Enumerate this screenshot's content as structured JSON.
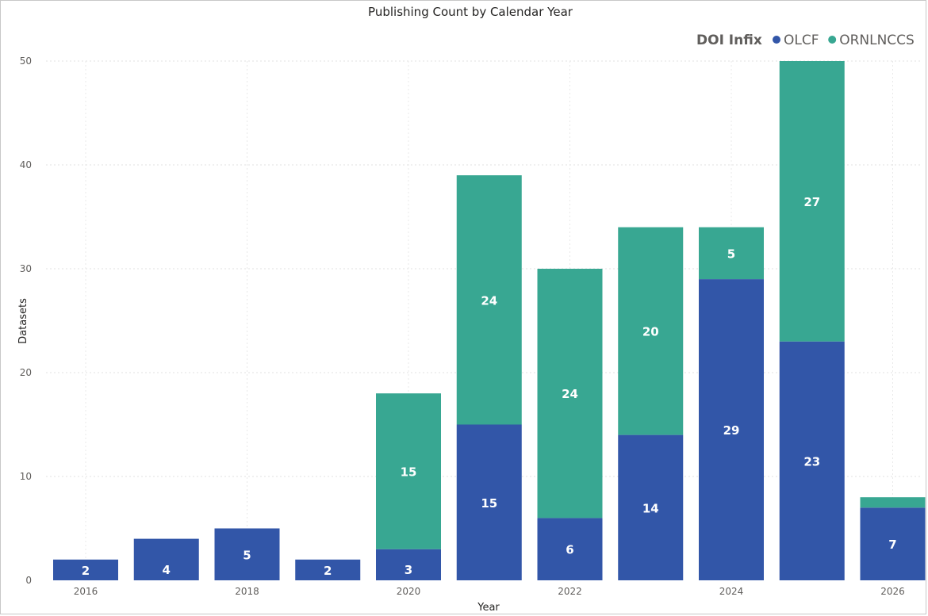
{
  "chart_data": {
    "type": "bar",
    "stacked": true,
    "title": "Publishing Count by Calendar Year",
    "xlabel": "Year",
    "ylabel": "Datasets",
    "categories": [
      "2016",
      "2017",
      "2018",
      "2019",
      "2020",
      "2021",
      "2022",
      "2023",
      "2024",
      "2025",
      "2026"
    ],
    "x_tick_labels": [
      "2016",
      "2018",
      "2020",
      "2022",
      "2024",
      "2026"
    ],
    "y_ticks": [
      0,
      10,
      20,
      30,
      40,
      50
    ],
    "ylim": [
      0,
      50
    ],
    "grid": true,
    "legend": {
      "title": "DOI Infix",
      "position": "top-right"
    },
    "series": [
      {
        "name": "OLCF",
        "color": "#3256a8",
        "values": [
          2,
          4,
          5,
          2,
          3,
          15,
          6,
          14,
          29,
          23,
          7
        ]
      },
      {
        "name": "ORNLNCCS",
        "color": "#38a792",
        "values": [
          0,
          0,
          0,
          0,
          15,
          24,
          24,
          20,
          5,
          27,
          1
        ]
      }
    ],
    "data_labels": {
      "OLCF": [
        "2",
        "4",
        "5",
        "2",
        "3",
        "15",
        "6",
        "14",
        "29",
        "23",
        "7"
      ],
      "ORNLNCCS": [
        "",
        "",
        "",
        "",
        "15",
        "24",
        "24",
        "20",
        "5",
        "27",
        ""
      ]
    }
  }
}
